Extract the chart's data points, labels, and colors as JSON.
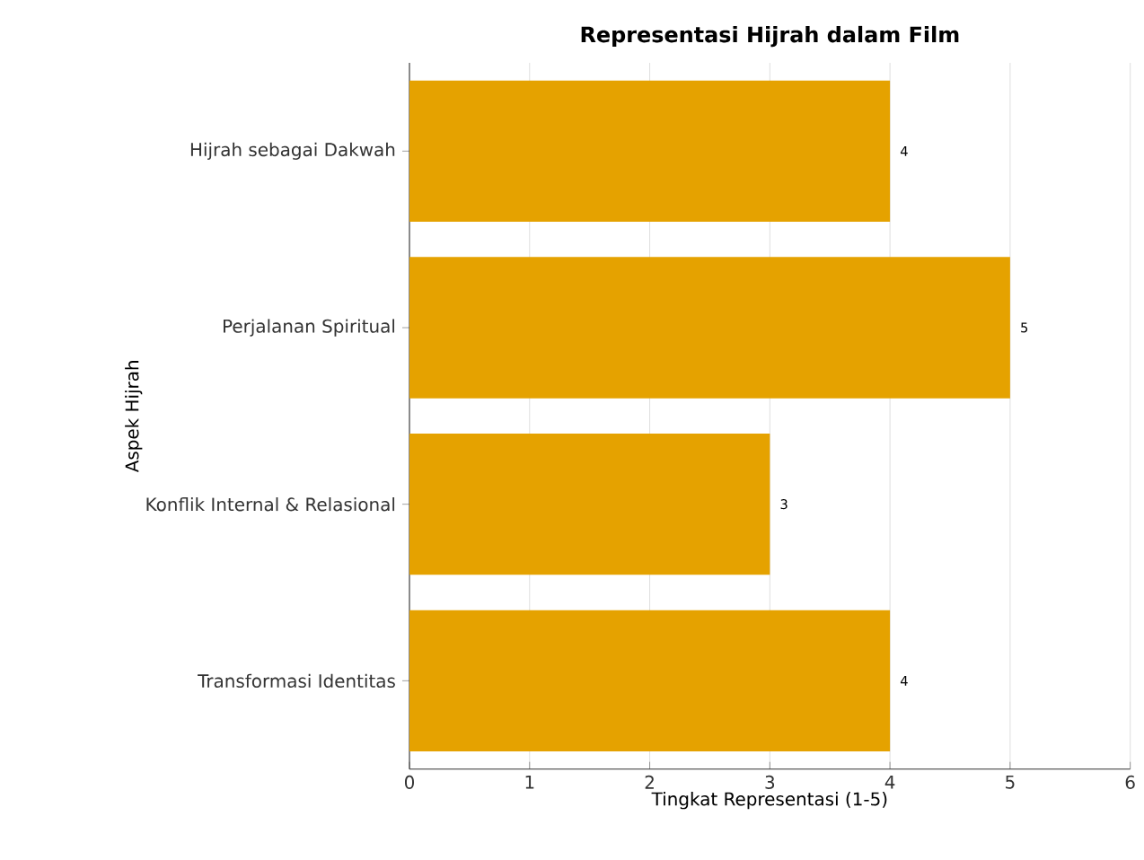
{
  "chart_data": {
    "type": "bar",
    "orientation": "horizontal",
    "title": "Representasi Hijrah dalam Film",
    "xlabel": "Tingkat Representasi (1-5)",
    "ylabel": "Aspek Hijrah",
    "categories": [
      "Hijrah sebagai Dakwah",
      "Perjalanan Spiritual",
      "Konflik Internal & Relasional",
      "Transformasi Identitas"
    ],
    "values": [
      4,
      5,
      3,
      4
    ],
    "color": "#e5a200",
    "xlim": [
      0,
      6
    ],
    "xticks": [
      0,
      1,
      2,
      3,
      4,
      5,
      6
    ],
    "grid": "x",
    "data_labels": true
  }
}
